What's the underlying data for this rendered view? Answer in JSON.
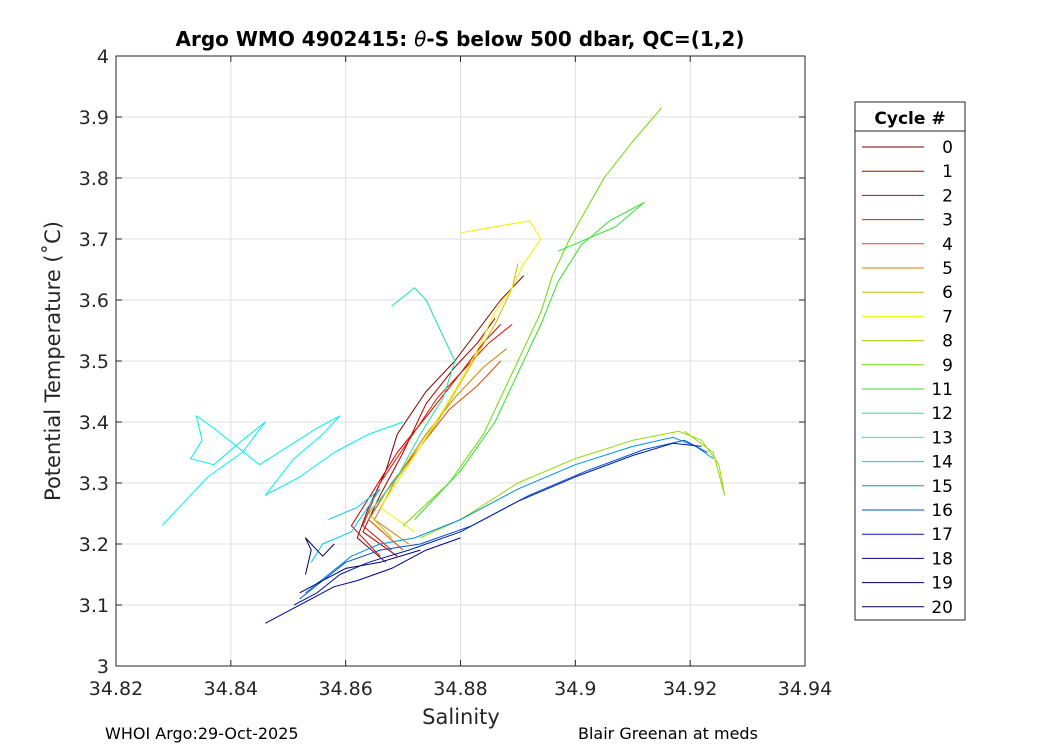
{
  "chart_data": {
    "type": "line",
    "title_prefix": "Argo WMO 4902415: ",
    "title_theta": "θ",
    "title_suffix": "-S below 500 dbar,  QC=(1,2)",
    "xlabel": "Salinity",
    "ylabel": "Potential Temperature (˚C)",
    "xlim": [
      34.82,
      34.94
    ],
    "ylim": [
      3.0,
      4.0
    ],
    "xticks": [
      34.82,
      34.84,
      34.86,
      34.88,
      34.9,
      34.92,
      34.94
    ],
    "xtick_labels": [
      "34.82",
      "34.84",
      "34.86",
      "34.88",
      "34.9",
      "34.92",
      "34.94"
    ],
    "yticks": [
      3.0,
      3.1,
      3.2,
      3.3,
      3.4,
      3.5,
      3.6,
      3.7,
      3.8,
      3.9,
      4.0
    ],
    "ytick_labels": [
      "3",
      "3.1",
      "3.2",
      "3.3",
      "3.4",
      "3.5",
      "3.6",
      "3.7",
      "3.8",
      "3.9",
      "4"
    ],
    "grid": true,
    "legend_title": "Cycle #",
    "legend_position": "right-outside",
    "series": [
      {
        "name": "0",
        "color": "#800000",
        "points": [
          [
            34.867,
            3.17
          ],
          [
            34.862,
            3.21
          ],
          [
            34.864,
            3.26
          ],
          [
            34.867,
            3.32
          ],
          [
            34.869,
            3.38
          ],
          [
            34.874,
            3.45
          ],
          [
            34.879,
            3.5
          ],
          [
            34.883,
            3.55
          ],
          [
            34.887,
            3.6
          ],
          [
            34.891,
            3.64
          ]
        ]
      },
      {
        "name": "1",
        "color": "#a00000",
        "points": [
          [
            34.869,
            3.18
          ],
          [
            34.863,
            3.22
          ],
          [
            34.866,
            3.28
          ],
          [
            34.87,
            3.35
          ],
          [
            34.874,
            3.43
          ],
          [
            34.879,
            3.49
          ],
          [
            34.883,
            3.53
          ],
          [
            34.886,
            3.57
          ]
        ]
      },
      {
        "name": "2",
        "color": "#cc0000",
        "points": [
          [
            34.866,
            3.18
          ],
          [
            34.861,
            3.23
          ],
          [
            34.865,
            3.29
          ],
          [
            34.869,
            3.35
          ],
          [
            34.875,
            3.42
          ],
          [
            34.88,
            3.48
          ],
          [
            34.884,
            3.53
          ],
          [
            34.887,
            3.56
          ]
        ]
      },
      {
        "name": "3",
        "color": "#e01a00",
        "points": [
          [
            34.868,
            3.19
          ],
          [
            34.863,
            3.23
          ],
          [
            34.866,
            3.3
          ],
          [
            34.871,
            3.37
          ],
          [
            34.876,
            3.44
          ],
          [
            34.881,
            3.49
          ],
          [
            34.885,
            3.53
          ],
          [
            34.889,
            3.56
          ]
        ]
      },
      {
        "name": "4",
        "color": "#e04800",
        "points": [
          [
            34.87,
            3.19
          ],
          [
            34.864,
            3.24
          ],
          [
            34.868,
            3.3
          ],
          [
            34.873,
            3.36
          ],
          [
            34.878,
            3.42
          ],
          [
            34.883,
            3.46
          ],
          [
            34.887,
            3.5
          ]
        ]
      },
      {
        "name": "5",
        "color": "#d08000",
        "points": [
          [
            34.871,
            3.2
          ],
          [
            34.865,
            3.24
          ],
          [
            34.869,
            3.31
          ],
          [
            34.874,
            3.38
          ],
          [
            34.879,
            3.44
          ],
          [
            34.884,
            3.49
          ],
          [
            34.888,
            3.52
          ]
        ]
      },
      {
        "name": "6",
        "color": "#c8c000",
        "points": [
          [
            34.868,
            3.21
          ],
          [
            34.864,
            3.25
          ],
          [
            34.87,
            3.32
          ],
          [
            34.876,
            3.4
          ],
          [
            34.881,
            3.48
          ],
          [
            34.886,
            3.56
          ],
          [
            34.889,
            3.62
          ],
          [
            34.89,
            3.66
          ]
        ]
      },
      {
        "name": "7",
        "color": "#f0f000",
        "points": [
          [
            34.872,
            3.22
          ],
          [
            34.866,
            3.26
          ],
          [
            34.871,
            3.33
          ],
          [
            34.877,
            3.42
          ],
          [
            34.882,
            3.5
          ],
          [
            34.886,
            3.58
          ],
          [
            34.889,
            3.62
          ],
          [
            34.891,
            3.66
          ],
          [
            34.894,
            3.7
          ],
          [
            34.892,
            3.73
          ],
          [
            34.88,
            3.71
          ]
        ]
      },
      {
        "name": "8",
        "color": "#98d800",
        "points": [
          [
            34.873,
            3.21
          ],
          [
            34.88,
            3.24
          ],
          [
            34.89,
            3.3
          ],
          [
            34.9,
            3.34
          ],
          [
            34.91,
            3.37
          ],
          [
            34.918,
            3.385
          ],
          [
            34.922,
            3.37
          ],
          [
            34.925,
            3.33
          ],
          [
            34.926,
            3.28
          ],
          [
            34.924,
            3.35
          ],
          [
            34.919,
            3.385
          ]
        ]
      },
      {
        "name": "9",
        "color": "#70d800",
        "points": [
          [
            34.87,
            3.23
          ],
          [
            34.878,
            3.3
          ],
          [
            34.884,
            3.38
          ],
          [
            34.888,
            3.46
          ],
          [
            34.891,
            3.52
          ],
          [
            34.894,
            3.58
          ],
          [
            34.896,
            3.64
          ],
          [
            34.899,
            3.7
          ],
          [
            34.902,
            3.75
          ],
          [
            34.905,
            3.8
          ],
          [
            34.91,
            3.86
          ],
          [
            34.915,
            3.915
          ]
        ]
      },
      {
        "name": "11",
        "color": "#30e030",
        "points": [
          [
            34.872,
            3.24
          ],
          [
            34.88,
            3.32
          ],
          [
            34.886,
            3.4
          ],
          [
            34.89,
            3.48
          ],
          [
            34.894,
            3.56
          ],
          [
            34.897,
            3.63
          ],
          [
            34.901,
            3.69
          ],
          [
            34.906,
            3.73
          ],
          [
            34.912,
            3.76
          ],
          [
            34.907,
            3.72
          ],
          [
            34.897,
            3.68
          ]
        ]
      },
      {
        "name": "12",
        "color": "#20e0a0",
        "points": [
          [
            34.864,
            3.25
          ],
          [
            34.869,
            3.31
          ],
          [
            34.873,
            3.38
          ],
          [
            34.877,
            3.44
          ],
          [
            34.879,
            3.5
          ],
          [
            34.876,
            3.56
          ],
          [
            34.874,
            3.6
          ],
          [
            34.872,
            3.62
          ],
          [
            34.868,
            3.59
          ]
        ]
      },
      {
        "name": "13",
        "color": "#00f0f0",
        "points": [
          [
            34.828,
            3.23
          ],
          [
            34.832,
            3.27
          ],
          [
            34.836,
            3.31
          ],
          [
            34.842,
            3.35
          ],
          [
            34.846,
            3.4
          ],
          [
            34.842,
            3.37
          ],
          [
            34.837,
            3.33
          ],
          [
            34.833,
            3.34
          ],
          [
            34.835,
            3.37
          ],
          [
            34.834,
            3.41
          ],
          [
            34.837,
            3.39
          ],
          [
            34.841,
            3.36
          ],
          [
            34.845,
            3.33
          ],
          [
            34.85,
            3.36
          ],
          [
            34.855,
            3.39
          ],
          [
            34.859,
            3.41
          ],
          [
            34.856,
            3.38
          ],
          [
            34.851,
            3.34
          ],
          [
            34.846,
            3.28
          ],
          [
            34.852,
            3.31
          ],
          [
            34.858,
            3.35
          ],
          [
            34.864,
            3.38
          ],
          [
            34.87,
            3.4
          ]
        ]
      },
      {
        "name": "14",
        "color": "#00c8f0",
        "points": [
          [
            34.857,
            3.24
          ],
          [
            34.862,
            3.26
          ],
          [
            34.866,
            3.29
          ],
          [
            34.861,
            3.22
          ],
          [
            34.856,
            3.2
          ],
          [
            34.854,
            3.17
          ]
        ]
      },
      {
        "name": "15",
        "color": "#0090e0",
        "points": [
          [
            34.853,
            3.12
          ],
          [
            34.857,
            3.15
          ],
          [
            34.861,
            3.18
          ],
          [
            34.866,
            3.2
          ],
          [
            34.872,
            3.21
          ],
          [
            34.88,
            3.24
          ],
          [
            34.89,
            3.29
          ],
          [
            34.9,
            3.33
          ],
          [
            34.91,
            3.36
          ],
          [
            34.917,
            3.375
          ],
          [
            34.921,
            3.36
          ],
          [
            34.924,
            3.34
          ]
        ]
      },
      {
        "name": "16",
        "color": "#0050d0",
        "points": [
          [
            34.852,
            3.11
          ],
          [
            34.856,
            3.14
          ],
          [
            34.86,
            3.17
          ],
          [
            34.866,
            3.19
          ],
          [
            34.873,
            3.2
          ],
          [
            34.882,
            3.23
          ],
          [
            34.892,
            3.28
          ],
          [
            34.902,
            3.32
          ],
          [
            34.912,
            3.355
          ],
          [
            34.919,
            3.37
          ],
          [
            34.923,
            3.35
          ]
        ]
      },
      {
        "name": "17",
        "color": "#0018b0",
        "points": [
          [
            34.851,
            3.1
          ],
          [
            34.855,
            3.12
          ],
          [
            34.859,
            3.15
          ],
          [
            34.864,
            3.17
          ],
          [
            34.871,
            3.19
          ],
          [
            34.88,
            3.22
          ],
          [
            34.89,
            3.27
          ],
          [
            34.9,
            3.31
          ],
          [
            34.91,
            3.345
          ],
          [
            34.917,
            3.365
          ],
          [
            34.922,
            3.36
          ]
        ]
      },
      {
        "name": "18",
        "color": "#000090",
        "points": [
          [
            34.846,
            3.07
          ],
          [
            34.85,
            3.09
          ],
          [
            34.854,
            3.11
          ],
          [
            34.858,
            3.13
          ],
          [
            34.862,
            3.14
          ],
          [
            34.868,
            3.16
          ],
          [
            34.874,
            3.19
          ],
          [
            34.88,
            3.21
          ]
        ]
      },
      {
        "name": "19",
        "color": "#000070",
        "points": [
          [
            34.852,
            3.12
          ],
          [
            34.856,
            3.14
          ],
          [
            34.86,
            3.16
          ],
          [
            34.866,
            3.17
          ],
          [
            34.873,
            3.19
          ]
        ]
      },
      {
        "name": "20",
        "color": "#000050",
        "points": [
          [
            34.853,
            3.15
          ],
          [
            34.854,
            3.19
          ],
          [
            34.853,
            3.21
          ],
          [
            34.856,
            3.18
          ],
          [
            34.858,
            3.2
          ]
        ]
      }
    ]
  },
  "footer": {
    "left": "WHOI Argo:29-Oct-2025",
    "right": "Blair Greenan at meds"
  }
}
